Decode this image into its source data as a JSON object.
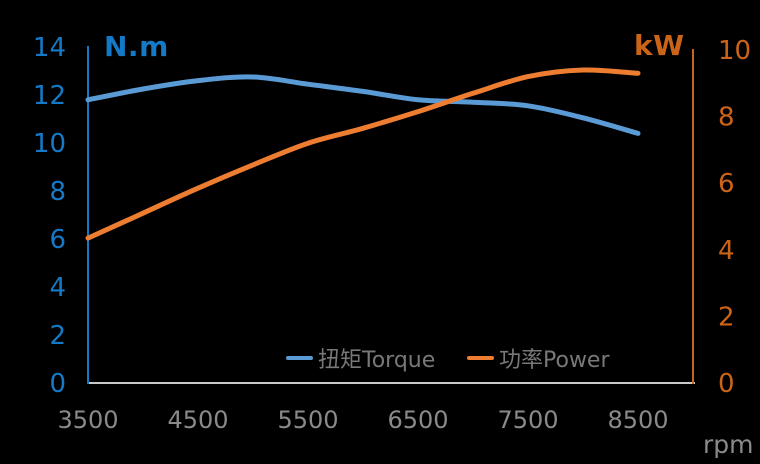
{
  "chart_data": {
    "type": "line",
    "title": "",
    "x": [
      3500,
      4000,
      4500,
      5000,
      5500,
      6000,
      6500,
      7000,
      7500,
      8000,
      8500
    ],
    "x_ticks": [
      3500,
      4500,
      5500,
      6500,
      7500,
      8500
    ],
    "xlim": [
      3500,
      9000
    ],
    "xlabel": "rpm",
    "series": [
      {
        "name": "扭矩Torque",
        "axis": "left",
        "color": "#5B9BD5",
        "values": [
          11.8,
          12.25,
          12.6,
          12.75,
          12.45,
          12.15,
          11.8,
          11.7,
          11.55,
          11.05,
          10.4
        ]
      },
      {
        "name": "功率Power",
        "axis": "right",
        "color": "#ED7D31",
        "values": [
          4.35,
          5.1,
          5.85,
          6.55,
          7.2,
          7.65,
          8.15,
          8.7,
          9.2,
          9.4,
          9.3
        ]
      }
    ],
    "left_axis": {
      "title": "N.m",
      "ticks": [
        0,
        2,
        4,
        6,
        8,
        10,
        12,
        14
      ],
      "ylim": [
        0,
        14
      ],
      "color": "#147AC8"
    },
    "right_axis": {
      "title": "kW",
      "ticks": [
        0,
        2,
        4,
        6,
        8,
        10
      ],
      "ylim": [
        0,
        10
      ],
      "color": "#CC6418"
    },
    "x_axis_color": "#C9C9C9",
    "x_tick_label_color": "#8A8A8A",
    "legend_position": "bottom-center",
    "legend_text_color": "#787878",
    "background": "#000000",
    "grid": false
  }
}
